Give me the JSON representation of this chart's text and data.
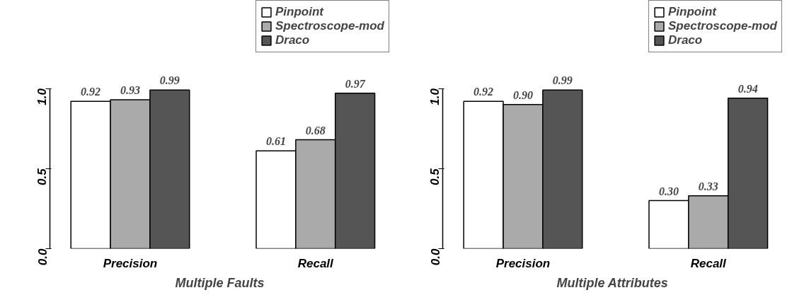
{
  "chart_data": [
    {
      "type": "bar",
      "xlabel": "Multiple Faults",
      "categories": [
        "Precision",
        "Recall"
      ],
      "ylim": [
        0,
        1.55
      ],
      "yticks": [
        {
          "value": 0,
          "label": "0.0"
        },
        {
          "value": 0.5,
          "label": "0.5"
        },
        {
          "value": 1,
          "label": "1.0"
        }
      ],
      "grid": false,
      "legend": "top",
      "series": [
        {
          "name": "Pinpoint",
          "color": "#ffffff",
          "values": [
            0.92,
            0.61
          ],
          "value_labels": [
            "0.92",
            "0.61"
          ]
        },
        {
          "name": "Spectroscope-mod",
          "color": "#aaaaaa",
          "values": [
            0.93,
            0.68
          ],
          "value_labels": [
            "0.93",
            "0.68"
          ]
        },
        {
          "name": "Draco",
          "color": "#555555",
          "values": [
            0.99,
            0.97
          ],
          "value_labels": [
            "0.99",
            "0.97"
          ]
        }
      ]
    },
    {
      "type": "bar",
      "xlabel": "Multiple Attributes",
      "categories": [
        "Precision",
        "Recall"
      ],
      "ylim": [
        0,
        1.55
      ],
      "yticks": [
        {
          "value": 0,
          "label": "0.0"
        },
        {
          "value": 0.5,
          "label": "0.5"
        },
        {
          "value": 1,
          "label": "1.0"
        }
      ],
      "grid": false,
      "legend": "top",
      "series": [
        {
          "name": "Pinpoint",
          "color": "#ffffff",
          "values": [
            0.92,
            0.3
          ],
          "value_labels": [
            "0.92",
            "0.30"
          ]
        },
        {
          "name": "Spectroscope-mod",
          "color": "#aaaaaa",
          "values": [
            0.9,
            0.33
          ],
          "value_labels": [
            "0.90",
            "0.33"
          ]
        },
        {
          "name": "Draco",
          "color": "#555555",
          "values": [
            0.99,
            0.94
          ],
          "value_labels": [
            "0.99",
            "0.94"
          ]
        }
      ]
    }
  ]
}
